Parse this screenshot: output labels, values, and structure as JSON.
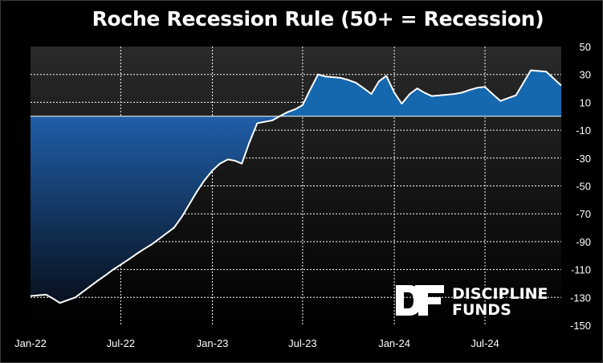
{
  "chart_data": {
    "type": "area",
    "title": "Roche Recession Rule (50+ = Recession)",
    "xlabel": "",
    "ylabel": "",
    "x_tick_labels": [
      "Jan-22",
      "Jul-22",
      "Jan-23",
      "Jul-23",
      "Jan-24",
      "Jul-24"
    ],
    "y_tick_labels": [
      "50",
      "30",
      "10",
      "-10",
      "-30",
      "-50",
      "-70",
      "-90",
      "-110",
      "-130",
      "-150"
    ],
    "ylim": [
      -150,
      50
    ],
    "y_axis_side": "right",
    "grid": true,
    "legend": "none",
    "series": [
      {
        "x": [
          "2022-01-01",
          "2022-01-16",
          "2022-02-01",
          "2022-02-16",
          "2022-03-01",
          "2022-03-16",
          "2022-04-01",
          "2022-04-16",
          "2022-05-01",
          "2022-05-16",
          "2022-06-01",
          "2022-06-16",
          "2022-07-01",
          "2022-07-16",
          "2022-08-01",
          "2022-08-16",
          "2022-09-01",
          "2022-09-16",
          "2022-10-01",
          "2022-10-16",
          "2022-11-01",
          "2022-11-16",
          "2022-12-01",
          "2022-12-16",
          "2023-01-01",
          "2023-01-16",
          "2023-02-01",
          "2023-02-16",
          "2023-03-01",
          "2023-03-16",
          "2023-04-01",
          "2023-04-16",
          "2023-05-01",
          "2023-05-16",
          "2023-06-01",
          "2023-06-16",
          "2023-07-01",
          "2023-07-16",
          "2023-08-01",
          "2023-08-16",
          "2023-09-01",
          "2023-09-16",
          "2023-10-01",
          "2023-10-16",
          "2023-11-01",
          "2023-11-16",
          "2023-12-01",
          "2023-12-16",
          "2024-01-01",
          "2024-01-16",
          "2024-02-01",
          "2024-02-16",
          "2024-03-01",
          "2024-03-16",
          "2024-04-01",
          "2024-04-16",
          "2024-05-01",
          "2024-05-16",
          "2024-06-01",
          "2024-06-16",
          "2024-07-01",
          "2024-07-16",
          "2024-08-01",
          "2024-08-16",
          "2024-09-01",
          "2024-09-16",
          "2024-10-01",
          "2024-10-16",
          "2024-11-01",
          "2024-11-16",
          "2024-12-01"
        ],
        "values": [
          -129,
          -128.5,
          -128,
          -131,
          -134,
          -132,
          -130,
          -126,
          -122,
          -118,
          -114,
          -110,
          -106.5,
          -103,
          -99,
          -95.5,
          -92,
          -88,
          -84,
          -80,
          -72,
          -63,
          -54,
          -46,
          -39,
          -34,
          -31,
          -32,
          -34,
          -19,
          -5,
          -4,
          -3,
          0,
          3,
          5,
          8,
          19,
          30,
          28.5,
          28,
          27.5,
          26,
          24,
          20,
          16,
          25,
          29,
          17,
          9,
          16,
          20,
          17,
          14.5,
          15,
          15.5,
          16,
          17,
          19,
          20.5,
          21,
          16,
          11,
          13,
          15,
          24,
          33,
          32.5,
          32,
          27,
          22
        ]
      }
    ],
    "colors": {
      "positive_fill": "#1568ae",
      "negative_fill_top": "#1f5ea8",
      "negative_fill_bottom": "#05070d",
      "line": "#ffffff",
      "grid": "#ffffff",
      "plot_background_top": "#2a2a2a",
      "plot_background_bottom": "#000000"
    }
  },
  "watermark": {
    "monogram": "DF",
    "line1": "DISCIPLINE",
    "line2": "FUNDS"
  }
}
